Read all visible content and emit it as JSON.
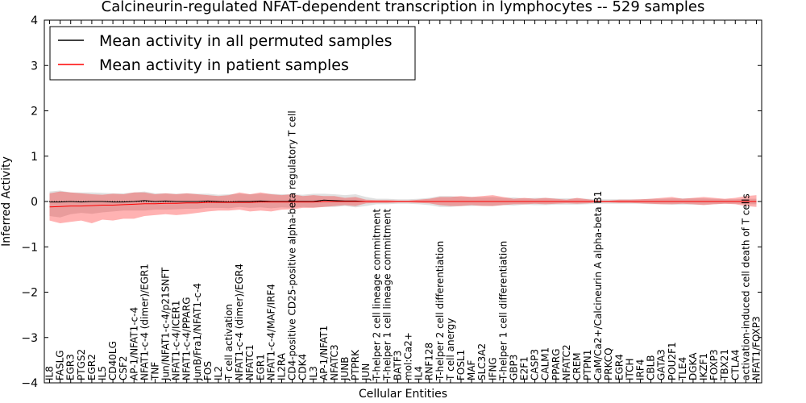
{
  "chart_data": {
    "type": "line",
    "title": "Calcineurin-regulated NFAT-dependent transcription in lymphocytes -- 529 samples",
    "xlabel": "Cellular Entities",
    "ylabel": "Inferred Activity",
    "ylim": [
      -4,
      4
    ],
    "yticks": [
      -4,
      -3,
      -2,
      -1,
      0,
      1,
      2,
      3,
      4
    ],
    "ytick_labels": [
      "−4",
      "−3",
      "−2",
      "−1",
      "0",
      "1",
      "2",
      "3",
      "4"
    ],
    "legend_position": "top-left",
    "categories": [
      "IL8",
      "FASLG",
      "EGR3",
      "PTGS2",
      "EGR2",
      "IL5",
      "CD40LG",
      "CSF2",
      "AP-1/NFAT1-c-4",
      "NFAT1-c-4 (dimer)/EGR1",
      "TNF",
      "Jun/NFAT1-c-4/p21SNFT",
      "NFAT1-c-4/ICER1",
      "NFAT1-c-4/PPARG",
      "JunB/Fra1/NFAT1-c-4",
      "FOS",
      "IL2",
      "T cell activation",
      "NFAT1-c-4 (dimer)/EGR4",
      "NFATC1",
      "EGR1",
      "NFAT1-c-4/MAF/IRF4",
      "IL2RA",
      "CD4-positive CD25-positive alpha-beta regulatory T cell",
      "CDK4",
      "IL3",
      "AP-1/NFAT1",
      "NFATC3",
      "JUNB",
      "PTPRK",
      "JUN",
      "T-helper 2 cell lineage commitment",
      "T-helper 1 cell lineage commitment",
      "BATF3",
      "mol:Ca2+",
      "IL4",
      "RNF128",
      "T-helper 2 cell differentiation",
      "T cell anergy",
      "FOSL1",
      "MAF",
      "SLC3A2",
      "IFNG",
      "T-helper 1 cell differentiation",
      "GBP3",
      "E2F1",
      "CASP3",
      "CALM1",
      "PPARG",
      "NFATC2",
      "CREM",
      "PTPN1",
      "CaM/Ca2+/Calcineurin A alpha-beta B1",
      "PRKCQ",
      "EGR4",
      "ITCH",
      "IRF4",
      "CBLB",
      "GATA3",
      "POU2F1",
      "TLE4",
      "DGKA",
      "IKZF1",
      "FOXP3",
      "TBX21",
      "CTLA4",
      "activation-induced cell death of T cells",
      "NFAT1/FOXP3"
    ],
    "series": [
      {
        "name": "Mean activity in all permuted samples",
        "color": "#000000",
        "values": [
          -0.01,
          -0.01,
          0.0,
          -0.01,
          0.0,
          0.0,
          -0.01,
          -0.01,
          0.0,
          0.02,
          0.0,
          0.01,
          0.0,
          0.0,
          0.0,
          0.01,
          0.0,
          -0.01,
          0.0,
          0.0,
          0.01,
          0.0,
          0.0,
          0.0,
          0.0,
          0.0,
          0.03,
          0.02,
          0.01,
          0.01,
          0.0,
          0.0,
          0.0,
          0.0,
          0.0,
          0.0,
          0.0,
          0.0,
          0.0,
          0.0,
          0.0,
          0.0,
          0.0,
          0.0,
          0.0,
          0.0,
          0.0,
          0.0,
          0.0,
          0.0,
          0.0,
          0.0,
          0.0,
          0.0,
          0.0,
          0.0,
          0.0,
          0.0,
          0.0,
          0.0,
          0.0,
          0.0,
          0.0,
          0.0,
          0.0,
          0.0,
          0.0,
          0.0
        ],
        "lower": [
          -0.32,
          -0.35,
          -0.28,
          -0.25,
          -0.27,
          -0.24,
          -0.22,
          -0.2,
          -0.2,
          -0.2,
          -0.18,
          -0.18,
          -0.17,
          -0.16,
          -0.16,
          -0.14,
          -0.14,
          -0.15,
          -0.12,
          -0.14,
          -0.13,
          -0.15,
          -0.13,
          -0.14,
          -0.12,
          -0.13,
          -0.12,
          -0.12,
          -0.1,
          -0.13,
          -0.1,
          -0.06,
          -0.06,
          -0.05,
          -0.05,
          -0.06,
          -0.08,
          -0.12,
          -0.12,
          -0.1,
          -0.1,
          -0.09,
          -0.1,
          -0.08,
          -0.09,
          -0.07,
          -0.08,
          -0.08,
          -0.07,
          -0.07,
          -0.07,
          -0.06,
          -0.05,
          -0.05,
          -0.05,
          -0.05,
          -0.05,
          -0.06,
          -0.06,
          -0.07,
          -0.07,
          -0.07,
          -0.07,
          -0.06,
          -0.05,
          -0.05,
          -0.06,
          -0.06
        ],
        "upper": [
          0.22,
          0.24,
          0.2,
          0.2,
          0.2,
          0.19,
          0.18,
          0.18,
          0.2,
          0.22,
          0.18,
          0.18,
          0.17,
          0.18,
          0.17,
          0.17,
          0.15,
          0.16,
          0.17,
          0.16,
          0.17,
          0.17,
          0.16,
          0.16,
          0.15,
          0.17,
          0.17,
          0.16,
          0.14,
          0.16,
          0.1,
          0.06,
          0.06,
          0.05,
          0.05,
          0.06,
          0.08,
          0.12,
          0.12,
          0.1,
          0.1,
          0.09,
          0.1,
          0.08,
          0.09,
          0.07,
          0.08,
          0.08,
          0.07,
          0.07,
          0.07,
          0.06,
          0.05,
          0.05,
          0.05,
          0.05,
          0.05,
          0.06,
          0.06,
          0.07,
          0.07,
          0.07,
          0.07,
          0.06,
          0.05,
          0.05,
          0.06,
          0.06
        ]
      },
      {
        "name": "Mean activity in patient samples",
        "color": "#ff0000",
        "values": [
          -0.12,
          -0.11,
          -0.1,
          -0.1,
          -0.09,
          -0.08,
          -0.08,
          -0.07,
          -0.06,
          -0.05,
          -0.05,
          -0.04,
          -0.04,
          -0.03,
          -0.03,
          -0.02,
          -0.02,
          -0.02,
          -0.02,
          -0.02,
          -0.01,
          -0.01,
          -0.01,
          -0.01,
          -0.01,
          -0.01,
          0.0,
          0.0,
          0.0,
          0.0,
          0.0,
          0.0,
          0.0,
          0.0,
          0.0,
          0.0,
          0.0,
          0.0,
          0.0,
          0.0,
          0.0,
          0.0,
          0.0,
          0.0,
          0.0,
          0.0,
          0.0,
          0.0,
          0.0,
          0.0,
          0.0,
          0.0,
          0.0,
          0.0,
          0.0,
          0.0,
          0.0,
          0.0,
          0.0,
          0.0,
          0.0,
          0.0,
          0.0,
          0.0,
          0.0,
          0.0,
          0.0,
          0.0
        ],
        "lower": [
          -0.42,
          -0.48,
          -0.45,
          -0.42,
          -0.48,
          -0.4,
          -0.42,
          -0.38,
          -0.38,
          -0.32,
          -0.3,
          -0.28,
          -0.3,
          -0.28,
          -0.25,
          -0.22,
          -0.2,
          -0.2,
          -0.18,
          -0.22,
          -0.2,
          -0.22,
          -0.18,
          -0.17,
          -0.14,
          -0.14,
          -0.12,
          -0.1,
          -0.08,
          -0.1,
          -0.04,
          -0.03,
          -0.03,
          -0.02,
          -0.02,
          -0.03,
          -0.04,
          -0.08,
          -0.1,
          -0.1,
          -0.08,
          -0.1,
          -0.1,
          -0.08,
          -0.06,
          -0.06,
          -0.05,
          -0.06,
          -0.05,
          -0.04,
          -0.05,
          -0.04,
          -0.02,
          -0.02,
          -0.03,
          -0.03,
          -0.04,
          -0.05,
          -0.06,
          -0.06,
          -0.05,
          -0.06,
          -0.08,
          -0.06,
          -0.05,
          -0.06,
          -0.1,
          -0.12
        ],
        "upper": [
          0.18,
          0.22,
          0.2,
          0.18,
          0.16,
          0.15,
          0.17,
          0.16,
          0.2,
          0.2,
          0.16,
          0.18,
          0.16,
          0.18,
          0.16,
          0.14,
          0.12,
          0.14,
          0.2,
          0.16,
          0.2,
          0.16,
          0.14,
          0.16,
          0.12,
          0.14,
          0.12,
          0.12,
          0.08,
          0.1,
          0.04,
          0.03,
          0.03,
          0.02,
          0.02,
          0.04,
          0.06,
          0.1,
          0.1,
          0.12,
          0.1,
          0.12,
          0.14,
          0.1,
          0.06,
          0.08,
          0.06,
          0.08,
          0.06,
          0.04,
          0.08,
          0.05,
          0.02,
          0.02,
          0.04,
          0.04,
          0.05,
          0.06,
          0.08,
          0.1,
          0.06,
          0.08,
          0.1,
          0.08,
          0.06,
          0.08,
          0.12,
          0.14
        ]
      }
    ]
  }
}
